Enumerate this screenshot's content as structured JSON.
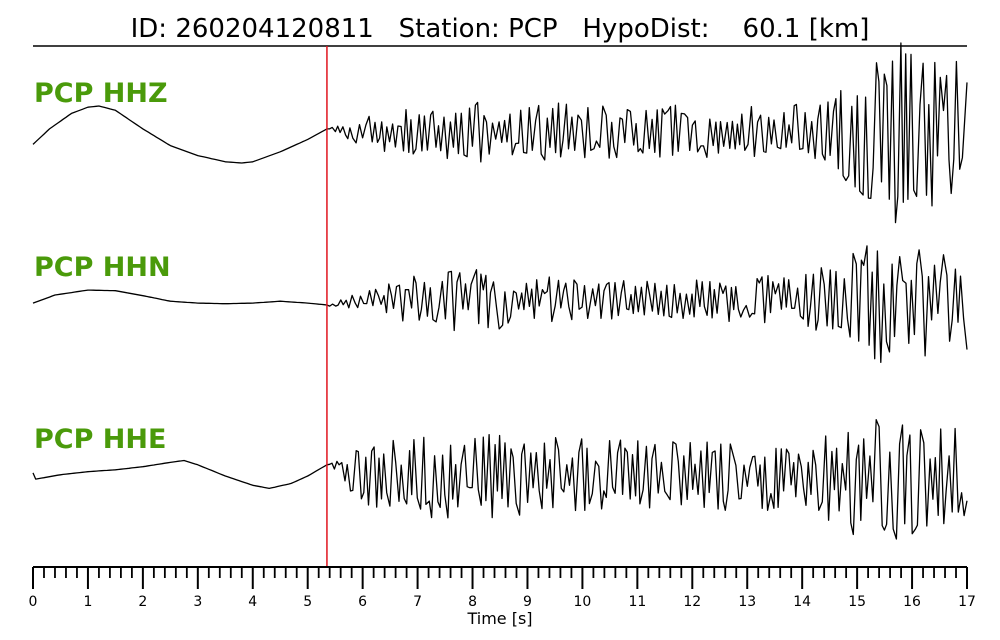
{
  "chart_data": {
    "type": "line",
    "title": "ID: 260204120811   Station: PCP   HypoDist:    60.1 [km]",
    "xlabel": "Time [s]",
    "xlim": [
      0,
      17
    ],
    "major_ticks": [
      0,
      1,
      2,
      3,
      4,
      5,
      6,
      7,
      8,
      9,
      10,
      11,
      12,
      13,
      14,
      15,
      16,
      17
    ],
    "minor_tick_step": 0.2,
    "pick_time": 5.35,
    "grid": false,
    "colors": {
      "trace": "#000000",
      "label": "#4a9a0a",
      "pick": "#e0141e",
      "axis": "#000000"
    },
    "series": [
      {
        "name": "PCP HHZ",
        "pre": [
          [
            0,
            -0.2
          ],
          [
            0.3,
            0.05
          ],
          [
            0.7,
            0.3
          ],
          [
            1.0,
            0.4
          ],
          [
            1.2,
            0.42
          ],
          [
            1.5,
            0.35
          ],
          [
            2.0,
            0.05
          ],
          [
            2.5,
            -0.22
          ],
          [
            3.0,
            -0.38
          ],
          [
            3.5,
            -0.48
          ],
          [
            3.8,
            -0.5
          ],
          [
            4.0,
            -0.48
          ],
          [
            4.5,
            -0.32
          ],
          [
            5.0,
            -0.12
          ],
          [
            5.35,
            0.05
          ]
        ],
        "envelope": [
          [
            5.35,
            0.12
          ],
          [
            6.5,
            0.3
          ],
          [
            7.8,
            0.45
          ],
          [
            10.0,
            0.42
          ],
          [
            13.5,
            0.38
          ],
          [
            14.5,
            0.45
          ],
          [
            15.0,
            0.9
          ],
          [
            15.5,
            1.35
          ],
          [
            16.0,
            1.3
          ],
          [
            16.5,
            1.15
          ],
          [
            17.0,
            1.0
          ]
        ],
        "end_value": 0.8,
        "seed": 11,
        "sample_dt": 0.05
      },
      {
        "name": "PCP HHN",
        "pre": [
          [
            0,
            -0.05
          ],
          [
            0.4,
            0.08
          ],
          [
            1.0,
            0.16
          ],
          [
            1.5,
            0.15
          ],
          [
            2.0,
            0.07
          ],
          [
            2.5,
            -0.02
          ],
          [
            3.0,
            -0.05
          ],
          [
            3.5,
            -0.06
          ],
          [
            4.0,
            -0.05
          ],
          [
            4.5,
            -0.02
          ],
          [
            5.0,
            -0.05
          ],
          [
            5.35,
            -0.08
          ]
        ],
        "envelope": [
          [
            5.35,
            0.08
          ],
          [
            6.5,
            0.25
          ],
          [
            7.2,
            0.45
          ],
          [
            8.0,
            0.5
          ],
          [
            9.0,
            0.35
          ],
          [
            11.0,
            0.3
          ],
          [
            13.0,
            0.32
          ],
          [
            14.5,
            0.5
          ],
          [
            15.0,
            0.9
          ],
          [
            16.0,
            0.95
          ],
          [
            16.8,
            0.7
          ],
          [
            17.0,
            0.6
          ]
        ],
        "end_value": -0.8,
        "seed": 23,
        "sample_dt": 0.05
      },
      {
        "name": "PCP HHE",
        "pre": [
          [
            0,
            0.05
          ],
          [
            0.05,
            -0.05
          ],
          [
            0.5,
            0.02
          ],
          [
            1.0,
            0.07
          ],
          [
            1.5,
            0.1
          ],
          [
            2.0,
            0.15
          ],
          [
            2.5,
            0.22
          ],
          [
            2.75,
            0.25
          ],
          [
            3.0,
            0.18
          ],
          [
            3.5,
            0.0
          ],
          [
            4.0,
            -0.15
          ],
          [
            4.3,
            -0.2
          ],
          [
            4.7,
            -0.12
          ],
          [
            5.0,
            0.0
          ],
          [
            5.35,
            0.18
          ]
        ],
        "envelope": [
          [
            5.35,
            0.25
          ],
          [
            6.0,
            0.5
          ],
          [
            7.0,
            0.6
          ],
          [
            8.0,
            0.65
          ],
          [
            10.0,
            0.55
          ],
          [
            12.0,
            0.5
          ],
          [
            14.0,
            0.55
          ],
          [
            14.8,
            0.8
          ],
          [
            15.1,
            1.1
          ],
          [
            16.0,
            0.85
          ],
          [
            17.0,
            0.7
          ]
        ],
        "end_value": -0.4,
        "seed": 37,
        "sample_dt": 0.05
      }
    ]
  }
}
